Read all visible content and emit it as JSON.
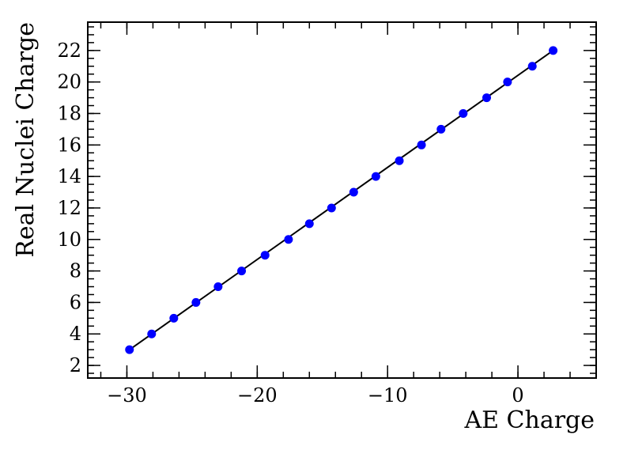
{
  "chart_data": {
    "type": "scatter",
    "xlabel": "AE Charge",
    "ylabel": "Real Nuclei Charge",
    "xlim": [
      -33,
      6
    ],
    "ylim": [
      1.2,
      23.8
    ],
    "x_ticks": [
      -30,
      -20,
      -10,
      0
    ],
    "x_tick_labels": [
      "−30",
      "−20",
      "−10",
      "0"
    ],
    "y_ticks": [
      2,
      4,
      6,
      8,
      10,
      12,
      14,
      16,
      18,
      20,
      22
    ],
    "y_tick_labels": [
      "2",
      "4",
      "6",
      "8",
      "10",
      "12",
      "14",
      "16",
      "18",
      "20",
      "22"
    ],
    "grid": false,
    "colors": {
      "points": "#0000ff",
      "fit_line": "#000000"
    },
    "series": [
      {
        "x": [
          -29.8,
          -28.1,
          -26.4,
          -24.7,
          -23.0,
          -21.2,
          -19.4,
          -17.6,
          -16.0,
          -14.3,
          -12.6,
          -10.9,
          -9.1,
          -7.4,
          -5.9,
          -4.2,
          -2.4,
          -0.8,
          1.1,
          2.7
        ],
        "y": [
          3,
          4,
          5,
          6,
          7,
          8,
          9,
          10,
          11,
          12,
          13,
          14,
          15,
          16,
          17,
          18,
          19,
          20,
          21,
          22
        ]
      }
    ],
    "fit_line": {
      "x": [
        -29.8,
        2.7
      ],
      "y": [
        3,
        22
      ]
    }
  }
}
